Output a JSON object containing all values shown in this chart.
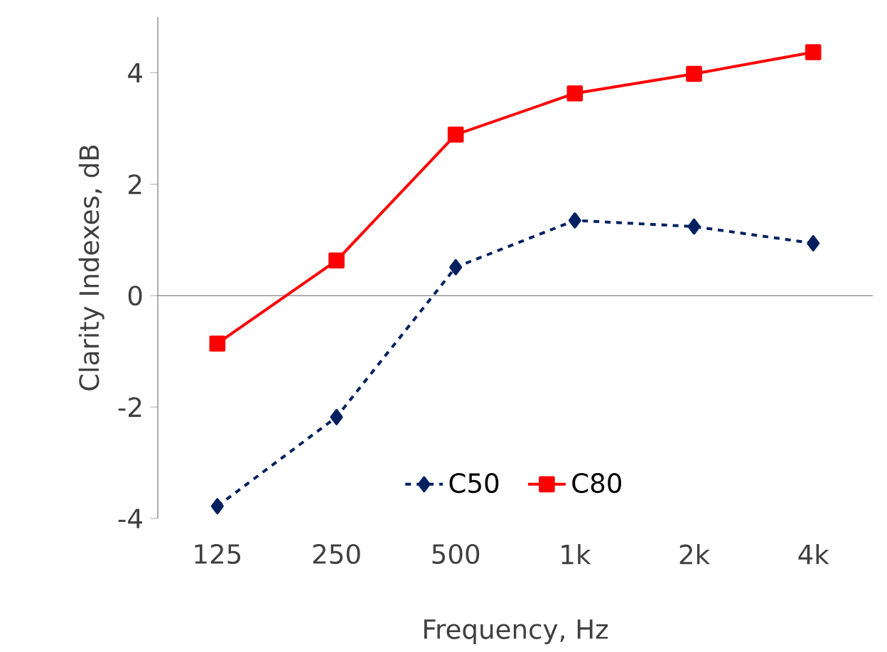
{
  "chart_data": {
    "type": "line",
    "xlabel": "Frequency, Hz",
    "ylabel": "Clarity Indexes, dB",
    "categories": [
      "125",
      "250",
      "500",
      "1k",
      "2k",
      "4k"
    ],
    "series": [
      {
        "name": "C50",
        "color": "#002060",
        "marker": "diamond",
        "line_style": "dashed",
        "values": [
          -3.78,
          -2.18,
          0.51,
          1.35,
          1.24,
          0.94
        ]
      },
      {
        "name": "C80",
        "color": "#ff0000",
        "marker": "square",
        "line_style": "solid",
        "values": [
          -0.86,
          0.63,
          2.89,
          3.63,
          3.98,
          4.37
        ]
      }
    ],
    "ylim": [
      -4,
      5
    ],
    "yticks": [
      -4,
      -2,
      0,
      2,
      4
    ],
    "legend": "bottom"
  }
}
